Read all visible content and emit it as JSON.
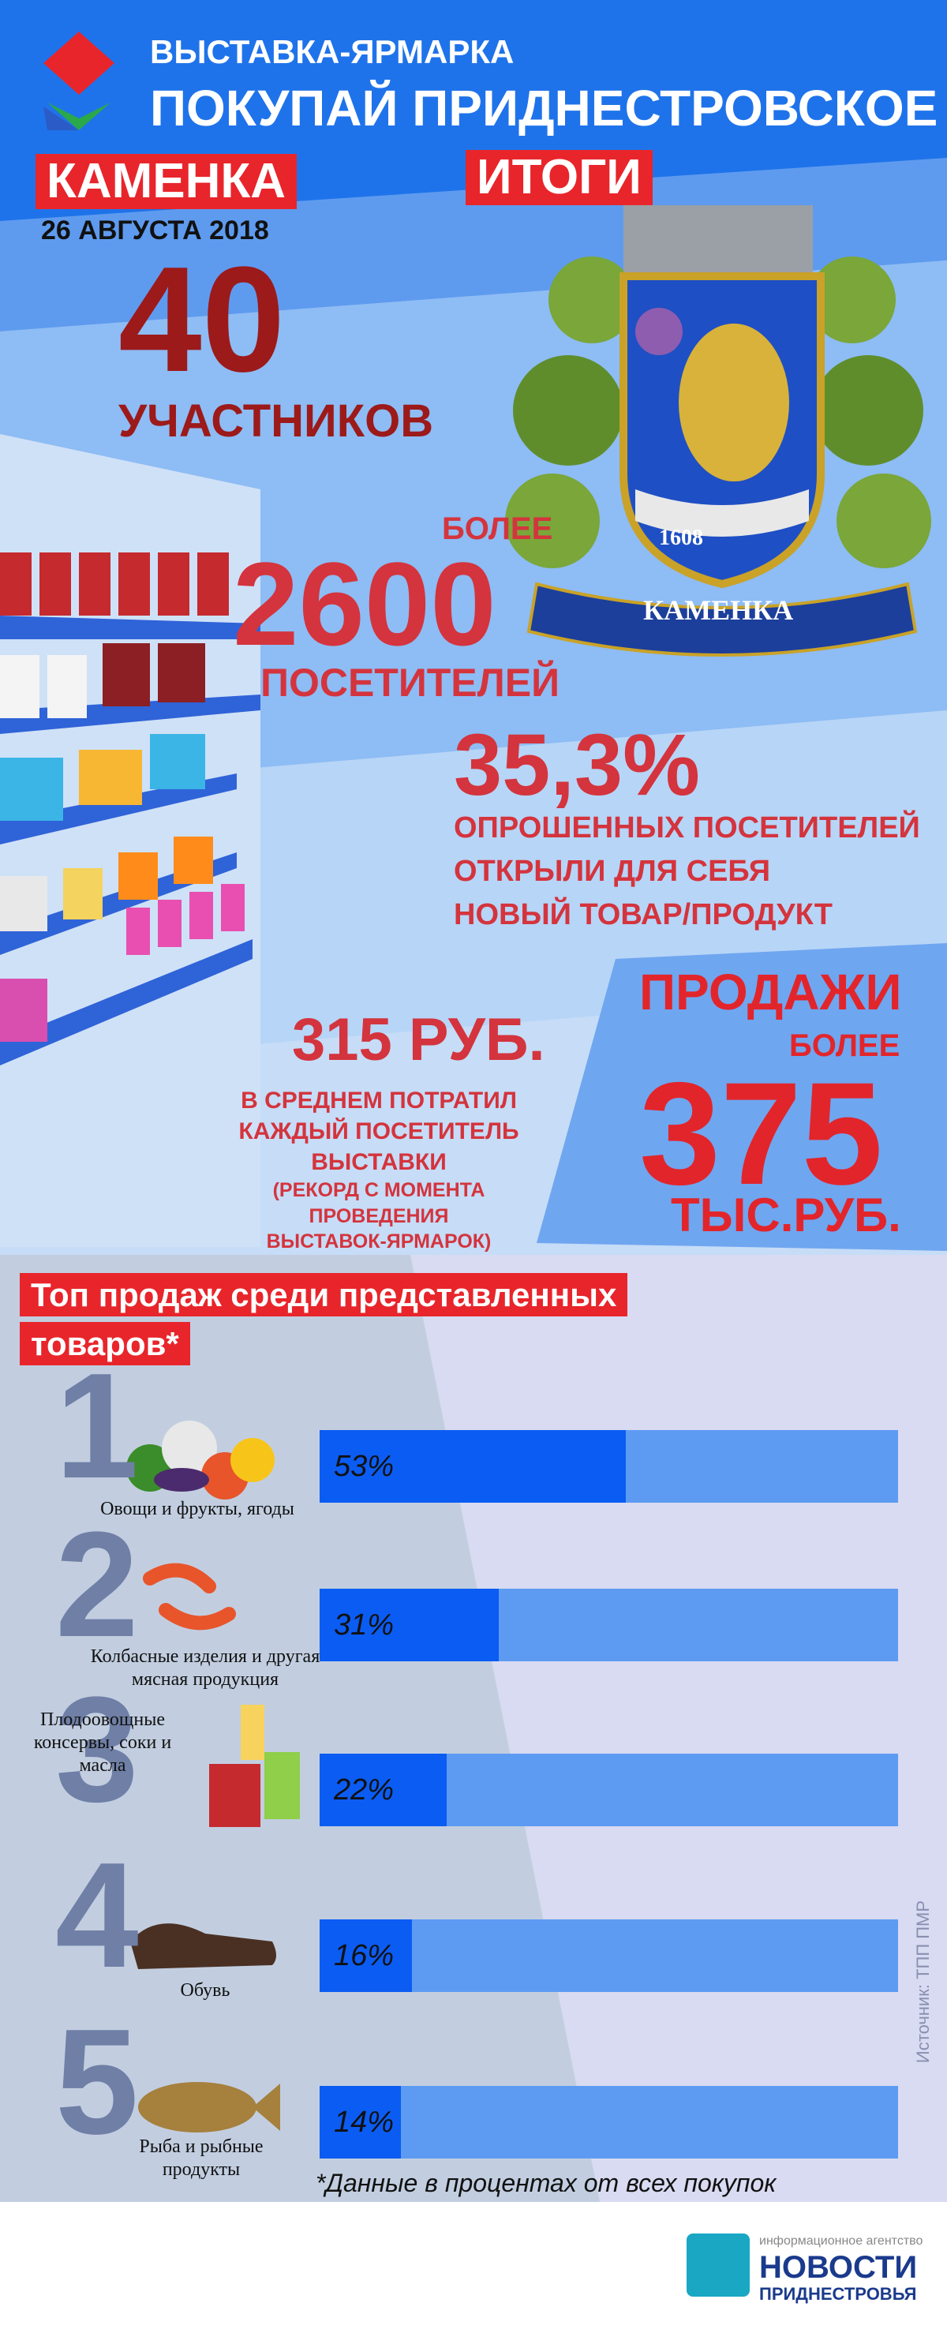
{
  "header": {
    "pretitle": "ВЫСТАВКА-ЯРМАРКА",
    "title": "ПОКУПАЙ ПРИДНЕСТРОВСКОЕ",
    "location": "КАМЕНКА",
    "date": "26 АВГУСТА 2018",
    "results": "ИТОГИ"
  },
  "coat_of_arms": {
    "year": "1608",
    "name": "КАМЕНКА"
  },
  "participants": {
    "value": "40",
    "label": "УЧАСТНИКОВ"
  },
  "visitors": {
    "prefix": "БОЛЕЕ",
    "value": "2600",
    "label": "ПОСЕТИТЕЛЕЙ"
  },
  "new_product": {
    "value": "35,3%",
    "lines": [
      "ОПРОШЕННЫХ ПОСЕТИТЕЛЕЙ",
      "ОТКРЫЛИ ДЛЯ СЕБЯ",
      "НОВЫЙ ТОВАР/ПРОДУКТ"
    ]
  },
  "average_spend": {
    "value": "315 РУБ.",
    "lines": [
      "В СРЕДНЕМ ПОТРАТИЛ",
      "КАЖДЫЙ ПОСЕТИТЕЛЬ",
      "ВЫСТАВКИ"
    ],
    "note": [
      "(РЕКОРД С МОМЕНТА ПРОВЕДЕНИЯ",
      "ВЫСТАВОК-ЯРМАРОК)"
    ]
  },
  "sales": {
    "title": "ПРОДАЖИ",
    "prefix": "БОЛЕЕ",
    "value": "375",
    "unit": "ТЫС.РУБ."
  },
  "chart_data": {
    "type": "bar",
    "title": "Топ продаж среди представленных товаров*",
    "ranks": [
      "1",
      "2",
      "3",
      "4",
      "5"
    ],
    "categories": [
      "Овощи и фрукты, ягоды",
      "Колбасные изделия и другая мясная продукция",
      "Плодоовощные консервы, соки и масла",
      "Обувь",
      "Рыба и рыбные продукты"
    ],
    "values": [
      53,
      31,
      22,
      16,
      14
    ],
    "value_labels": [
      "53%",
      "31%",
      "22%",
      "16%",
      "14%"
    ],
    "xlim": [
      0,
      100
    ],
    "color": "#0b5cf2",
    "track_color": "#5d9bf3",
    "footnote": "*Данные в процентах от всех покупок",
    "source": "Источник: ТПП ПМР"
  },
  "footer": {
    "agency": "информационное агентство",
    "name": "НОВОСТИ",
    "region": "ПРИДНЕСТРОВЬЯ"
  }
}
